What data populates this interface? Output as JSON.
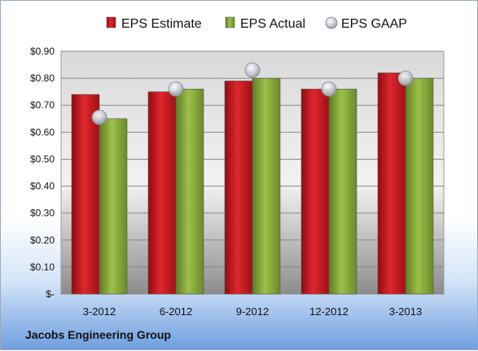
{
  "chart_data": {
    "type": "bar",
    "categories": [
      "3-2012",
      "6-2012",
      "9-2012",
      "12-2012",
      "3-2013"
    ],
    "series": [
      {
        "name": "EPS Estimate",
        "kind": "bar",
        "color": "#c4161c",
        "values": [
          0.74,
          0.75,
          0.79,
          0.76,
          0.82
        ]
      },
      {
        "name": "EPS Actual",
        "kind": "bar",
        "color": "#86a83a",
        "values": [
          0.65,
          0.76,
          0.8,
          0.76,
          0.8
        ]
      },
      {
        "name": "EPS GAAP",
        "kind": "marker",
        "color": "#b9c0c8",
        "values": [
          0.655,
          0.76,
          0.83,
          0.76,
          0.8
        ]
      }
    ],
    "ylim": [
      0,
      0.9
    ],
    "yticks": [
      0,
      0.1,
      0.2,
      0.3,
      0.4,
      0.5,
      0.6,
      0.7,
      0.8,
      0.9
    ],
    "ytick_labels": [
      "$-",
      "$0.10",
      "$0.20",
      "$0.30",
      "$0.40",
      "$0.50",
      "$0.60",
      "$0.70",
      "$0.80",
      "$0.90"
    ],
    "legend_position": "top",
    "grid": true,
    "footer": "Jacobs Engineering Group"
  }
}
